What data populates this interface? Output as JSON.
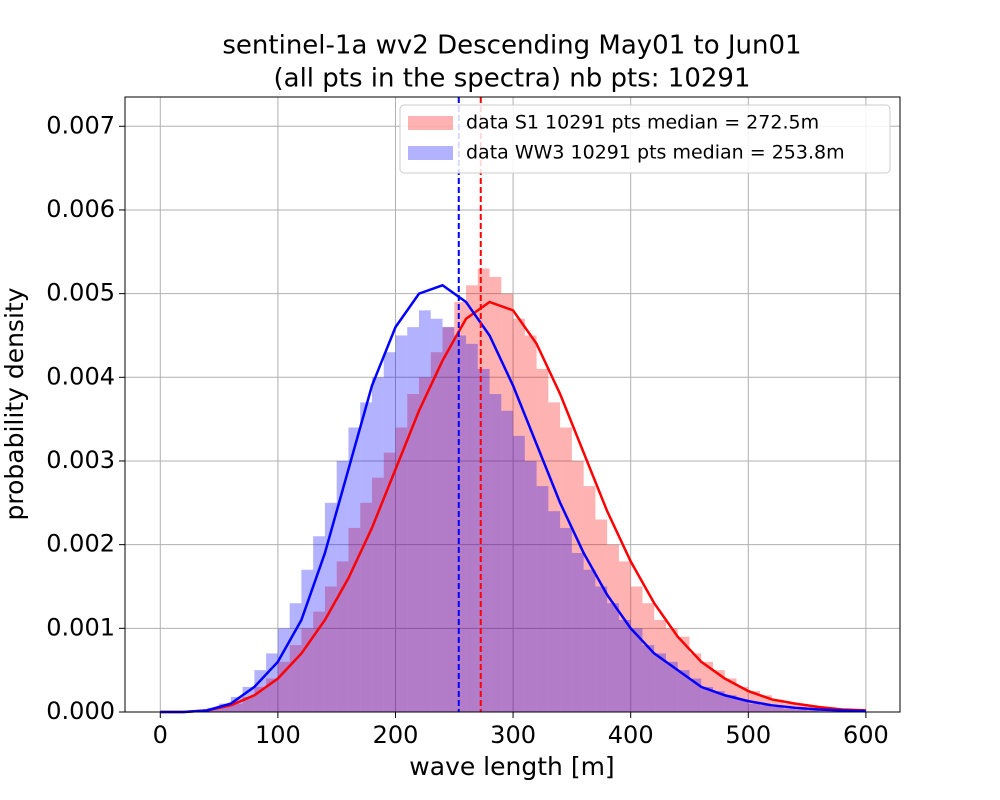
{
  "chart_data": {
    "type": "histogram",
    "title": [
      "sentinel-1a wv2 Descending May01 to Jun01",
      "(all pts in the spectra) nb pts: 10291"
    ],
    "xlabel": "wave length [m]",
    "ylabel": "probability density",
    "bins": [
      0,
      10,
      20,
      30,
      40,
      50,
      60,
      70,
      80,
      90,
      100,
      110,
      120,
      130,
      140,
      150,
      160,
      170,
      180,
      190,
      200,
      210,
      220,
      230,
      240,
      250,
      260,
      270,
      280,
      290,
      300,
      310,
      320,
      330,
      340,
      350,
      360,
      370,
      380,
      390,
      400,
      410,
      420,
      430,
      440,
      450,
      460,
      470,
      480,
      490,
      500,
      510,
      520,
      530,
      540,
      550,
      560,
      570,
      580,
      590,
      600
    ],
    "series": [
      {
        "name": "data S1 10291 pts median = 272.5m",
        "color": "#ff0000",
        "median": 272.5,
        "values": [
          0,
          0,
          0,
          1e-05,
          3e-05,
          6e-05,
          0.0001,
          0.00018,
          0.0003,
          0.0004,
          0.0006,
          0.0008,
          0.001,
          0.0012,
          0.0015,
          0.0018,
          0.0022,
          0.0025,
          0.0028,
          0.0031,
          0.0034,
          0.0038,
          0.004,
          0.0043,
          0.0046,
          0.0049,
          0.0051,
          0.0053,
          0.0052,
          0.005,
          0.0047,
          0.0045,
          0.0041,
          0.0037,
          0.0034,
          0.003,
          0.0027,
          0.0023,
          0.002,
          0.0018,
          0.0015,
          0.0013,
          0.0011,
          0.001,
          0.0009,
          0.0007,
          0.0006,
          0.0005,
          0.0004,
          0.0003,
          0.00025,
          0.0002,
          0.00015,
          0.0001,
          8e-05,
          6e-05,
          4e-05,
          3e-05,
          2e-05,
          1e-05
        ]
      },
      {
        "name": "data WW3 10291 pts median = 253.8m",
        "color": "#0000ff",
        "median": 253.8,
        "values": [
          0,
          0,
          0,
          2e-05,
          5e-05,
          0.0001,
          0.00018,
          0.0003,
          0.0005,
          0.0007,
          0.001,
          0.0013,
          0.0017,
          0.0021,
          0.0025,
          0.003,
          0.0034,
          0.0037,
          0.004,
          0.0043,
          0.0045,
          0.0046,
          0.0048,
          0.0047,
          0.0046,
          0.0045,
          0.0044,
          0.0041,
          0.0038,
          0.0036,
          0.0033,
          0.003,
          0.0027,
          0.0024,
          0.0022,
          0.0019,
          0.0017,
          0.0015,
          0.0013,
          0.0011,
          0.001,
          0.0008,
          0.0007,
          0.0006,
          0.0005,
          0.0004,
          0.0003,
          0.00025,
          0.0002,
          0.00015,
          0.0001,
          8e-05,
          6e-05,
          4e-05,
          3e-05,
          2e-05,
          1e-05,
          1e-05,
          0,
          0
        ]
      }
    ],
    "curve_x": [
      0,
      20,
      40,
      60,
      80,
      100,
      120,
      140,
      160,
      180,
      200,
      220,
      240,
      260,
      280,
      300,
      320,
      340,
      360,
      380,
      400,
      420,
      440,
      460,
      480,
      500,
      520,
      540,
      560,
      580,
      600
    ],
    "curves": [
      {
        "color": "#ff0000",
        "values": [
          0,
          0,
          2e-05,
          8e-05,
          0.0002,
          0.0004,
          0.0007,
          0.0011,
          0.0016,
          0.0022,
          0.0029,
          0.0036,
          0.0042,
          0.0047,
          0.0049,
          0.0048,
          0.0044,
          0.0038,
          0.0031,
          0.0024,
          0.0018,
          0.0013,
          0.0009,
          0.0006,
          0.0004,
          0.00025,
          0.00015,
          0.0001,
          6e-05,
          3e-05,
          2e-05
        ]
      },
      {
        "color": "#0000ff",
        "values": [
          0,
          0,
          2e-05,
          0.0001,
          0.0003,
          0.0006,
          0.0011,
          0.0019,
          0.0029,
          0.0039,
          0.0046,
          0.005,
          0.0051,
          0.0049,
          0.0045,
          0.0039,
          0.0032,
          0.0025,
          0.0019,
          0.0014,
          0.001,
          0.0007,
          0.0005,
          0.0003,
          0.0002,
          0.00013,
          8e-05,
          5e-05,
          3e-05,
          2e-05,
          1e-05
        ]
      }
    ],
    "xlim": [
      -30,
      629
    ],
    "ylim": [
      0,
      0.00735
    ],
    "xticks": [
      0,
      100,
      200,
      300,
      400,
      500,
      600
    ],
    "yticks": [
      {
        "value": 0,
        "label": "0.000"
      },
      {
        "value": 0.001,
        "label": "0.001"
      },
      {
        "value": 0.002,
        "label": "0.002"
      },
      {
        "value": 0.003,
        "label": "0.003"
      },
      {
        "value": 0.004,
        "label": "0.004"
      },
      {
        "value": 0.005,
        "label": "0.005"
      },
      {
        "value": 0.006,
        "label": "0.006"
      },
      {
        "value": 0.007,
        "label": "0.007"
      }
    ],
    "grid": true,
    "legend": "upper right",
    "bar_opacity": 0.3
  }
}
